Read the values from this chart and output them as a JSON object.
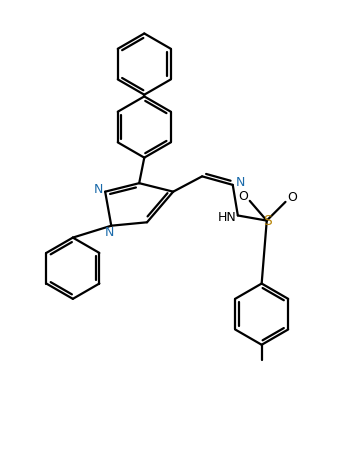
{
  "bg_color": "#ffffff",
  "bond_color": "#000000",
  "N_color": "#1a6aaa",
  "S_color": "#b8860b",
  "line_width": 1.6,
  "figsize": [
    3.43,
    4.65
  ],
  "dpi": 100,
  "xlim": [
    0,
    10
  ],
  "ylim": [
    0,
    13.5
  ]
}
